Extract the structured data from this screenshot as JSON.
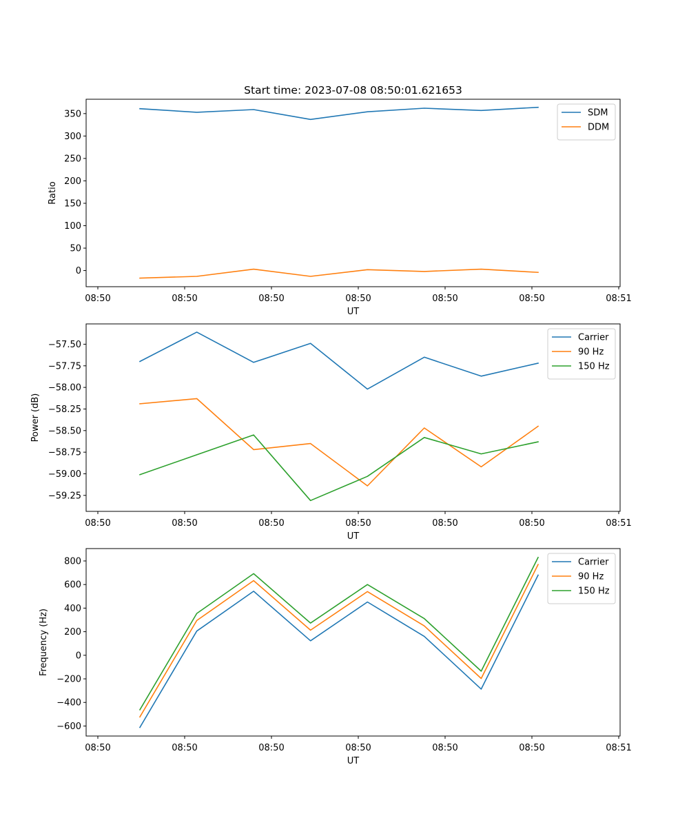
{
  "figure": {
    "title": "Start time: 2023-07-08 08:50:01.621653"
  },
  "chart_data": [
    {
      "type": "line",
      "title": "Start time: 2023-07-08 08:50:01.621653",
      "xlabel": "UT",
      "ylabel": "Ratio",
      "x_tick_labels": [
        "08:50",
        "08:50",
        "08:50",
        "08:50",
        "08:50",
        "08:50",
        "08:51"
      ],
      "x_points": 8,
      "ylim": [
        -36,
        382
      ],
      "yticks": [
        0,
        50,
        100,
        150,
        200,
        250,
        300,
        350
      ],
      "ytick_labels": [
        "0",
        "50",
        "100",
        "150",
        "200",
        "250",
        "300",
        "350"
      ],
      "legend_position": "top-right",
      "series": [
        {
          "name": "SDM",
          "color": "#1f77b4",
          "values": [
            361,
            353,
            359,
            337,
            354,
            362,
            357,
            364
          ]
        },
        {
          "name": "DDM",
          "color": "#ff7f0e",
          "values": [
            -17,
            -13,
            3,
            -13,
            2,
            -2,
            3,
            -4
          ]
        }
      ]
    },
    {
      "type": "line",
      "xlabel": "UT",
      "ylabel": "Power (dB)",
      "x_tick_labels": [
        "08:50",
        "08:50",
        "08:50",
        "08:50",
        "08:50",
        "08:50",
        "08:51"
      ],
      "x_points": 8,
      "ylim": [
        -59.435,
        -57.265
      ],
      "yticks": [
        -59.25,
        -59.0,
        -58.75,
        -58.5,
        -58.25,
        -58.0,
        -57.75,
        -57.5
      ],
      "ytick_labels": [
        "−59.25",
        "−59.00",
        "−58.75",
        "−58.50",
        "−58.25",
        "−58.00",
        "−57.75",
        "−57.50"
      ],
      "legend_position": "top-right",
      "series": [
        {
          "name": "Carrier",
          "color": "#1f77b4",
          "values": [
            -57.7,
            -57.36,
            -57.71,
            -57.49,
            -58.02,
            -57.65,
            -57.87,
            -57.72
          ]
        },
        {
          "name": "90 Hz",
          "color": "#ff7f0e",
          "values": [
            -58.19,
            -58.13,
            -58.72,
            -58.65,
            -59.14,
            -58.47,
            -58.92,
            -58.45
          ]
        },
        {
          "name": "150 Hz",
          "color": "#2ca02c",
          "values": [
            -59.01,
            -58.78,
            -58.55,
            -59.31,
            -59.03,
            -58.58,
            -58.77,
            -58.63
          ]
        }
      ]
    },
    {
      "type": "line",
      "xlabel": "UT",
      "ylabel": "Frequency (Hz)",
      "x_tick_labels": [
        "08:50",
        "08:50",
        "08:50",
        "08:50",
        "08:50",
        "08:50",
        "08:51"
      ],
      "x_points": 8,
      "ylim": [
        -685,
        905
      ],
      "yticks": [
        -600,
        -400,
        -200,
        0,
        200,
        400,
        600,
        800
      ],
      "ytick_labels": [
        "−600",
        "−400",
        "−200",
        "0",
        "200",
        "400",
        "600",
        "800"
      ],
      "legend_position": "top-right",
      "series": [
        {
          "name": "Carrier",
          "color": "#1f77b4",
          "values": [
            -612,
            205,
            543,
            123,
            452,
            160,
            -287,
            680
          ]
        },
        {
          "name": "90 Hz",
          "color": "#ff7f0e",
          "values": [
            -523,
            295,
            633,
            213,
            540,
            249,
            -197,
            770
          ]
        },
        {
          "name": "150 Hz",
          "color": "#2ca02c",
          "values": [
            -462,
            355,
            692,
            273,
            600,
            311,
            -135,
            830
          ]
        }
      ]
    }
  ]
}
